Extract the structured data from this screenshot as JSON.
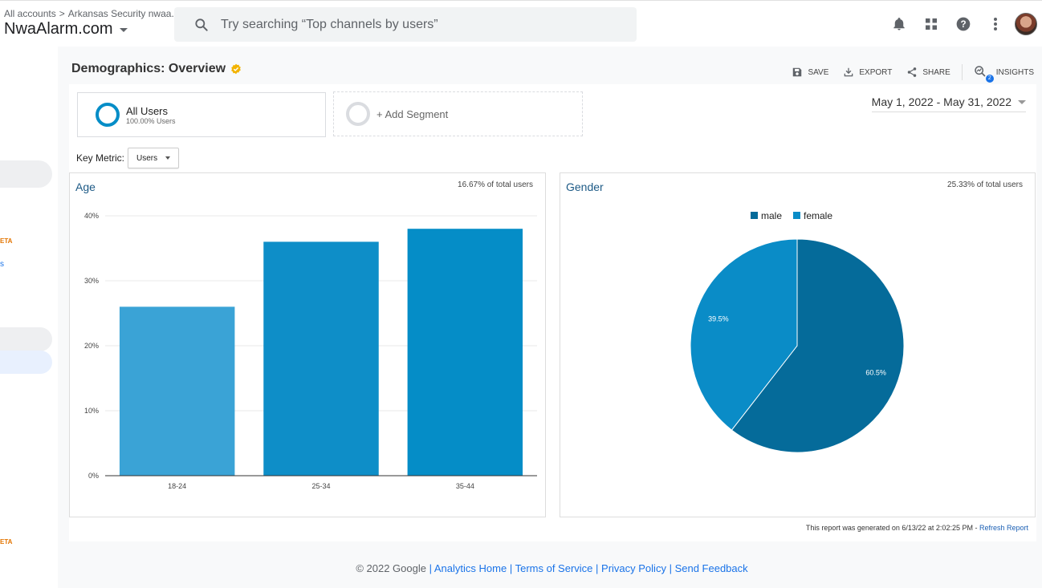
{
  "header": {
    "breadcrumb": [
      "All accounts",
      "Arkansas Security nwaa..."
    ],
    "account": "NwaAlarm.com",
    "search_placeholder": "Try searching “Top channels by users”"
  },
  "report": {
    "title": "Demographics: Overview",
    "actions": {
      "save": "SAVE",
      "export": "EXPORT",
      "share": "SHARE",
      "insights": "INSIGHTS",
      "insights_count": "2"
    },
    "segments": {
      "all_users": {
        "name": "All Users",
        "percent": "100.00% Users"
      },
      "add": "+ Add Segment"
    },
    "date_range": "May 1, 2022 - May 31, 2022",
    "key_metric": {
      "label": "Key Metric:",
      "value": "Users"
    },
    "age": {
      "title": "Age",
      "note": "16.67% of total users"
    },
    "gender": {
      "title": "Gender",
      "note": "25.33% of total users"
    },
    "generated": "This report was generated on 6/13/22 at 2:02:25 PM - ",
    "refresh": "Refresh Report"
  },
  "sidebar": {
    "beta_1": "ETA",
    "beta_2": "ETA",
    "s_label": "s"
  },
  "footer": {
    "copyright": "© 2022 Google",
    "links": [
      "Analytics Home",
      "Terms of Service",
      "Privacy Policy",
      "Send Feedback"
    ]
  },
  "chart_data": [
    {
      "type": "bar",
      "title": "Age",
      "categories": [
        "18-24",
        "25-34",
        "35-44"
      ],
      "values": [
        26,
        36,
        38
      ],
      "colors": [
        "#3aa3d6",
        "#0e8ec8",
        "#058dc7"
      ],
      "ylim": [
        0,
        40
      ],
      "yticks": [
        "0%",
        "10%",
        "20%",
        "30%",
        "40%"
      ],
      "grid": true
    },
    {
      "type": "pie",
      "title": "Gender",
      "series": [
        {
          "name": "male",
          "value": 60.5,
          "label": "60.5%",
          "color": "#056b9a"
        },
        {
          "name": "female",
          "value": 39.5,
          "label": "39.5%",
          "color": "#0a8cc7"
        }
      ],
      "legend": "top"
    }
  ]
}
